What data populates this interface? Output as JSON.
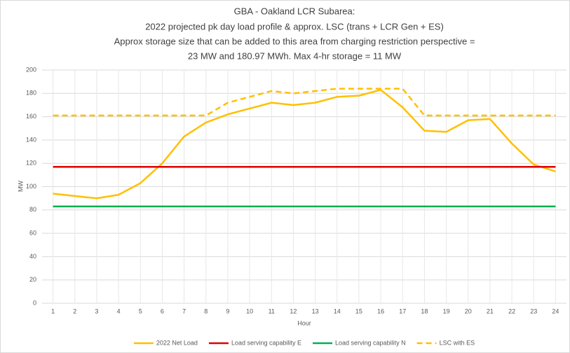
{
  "chart_data": {
    "type": "line",
    "title": [
      "GBA - Oakland LCR Subarea:",
      "2022 projected pk day load profile & approx. LSC (trans + LCR Gen + ES)",
      "Approx storage size that can be added to this area from charging restriction perspective =",
      "23 MW and 180.97 MWh. Max 4-hr storage = 11 MW"
    ],
    "x_label": "Hour",
    "y_label": "MW",
    "categories": [
      1,
      2,
      3,
      4,
      5,
      6,
      7,
      8,
      9,
      10,
      11,
      12,
      13,
      14,
      15,
      16,
      17,
      18,
      19,
      20,
      21,
      22,
      23,
      24
    ],
    "series": [
      {
        "name": "2022 Net Load",
        "color": "#ffc000",
        "dash": false,
        "values": [
          94,
          92,
          90,
          93,
          103,
          120,
          143,
          155,
          162,
          167,
          172,
          170,
          172,
          177,
          178,
          183,
          168,
          148,
          147,
          157,
          158,
          137,
          119,
          113
        ]
      },
      {
        "name": "Load serving capability E",
        "color": "#e00000",
        "dash": false,
        "values": [
          117,
          117,
          117,
          117,
          117,
          117,
          117,
          117,
          117,
          117,
          117,
          117,
          117,
          117,
          117,
          117,
          117,
          117,
          117,
          117,
          117,
          117,
          117,
          117
        ]
      },
      {
        "name": "Load serving capability N",
        "color": "#00b050",
        "dash": false,
        "values": [
          83,
          83,
          83,
          83,
          83,
          83,
          83,
          83,
          83,
          83,
          83,
          83,
          83,
          83,
          83,
          83,
          83,
          83,
          83,
          83,
          83,
          83,
          83,
          83
        ]
      },
      {
        "name": "LSC with ES",
        "color": "#ffc000",
        "dash": true,
        "values": [
          161,
          161,
          161,
          161,
          161,
          161,
          161,
          161,
          172,
          177,
          182,
          180,
          182,
          184,
          184,
          184,
          184,
          161,
          161,
          161,
          161,
          161,
          161,
          161
        ]
      }
    ],
    "ylim": [
      0,
      200
    ],
    "yticks": [
      0,
      20,
      40,
      60,
      80,
      100,
      120,
      140,
      160,
      180,
      200
    ],
    "grid": true
  }
}
